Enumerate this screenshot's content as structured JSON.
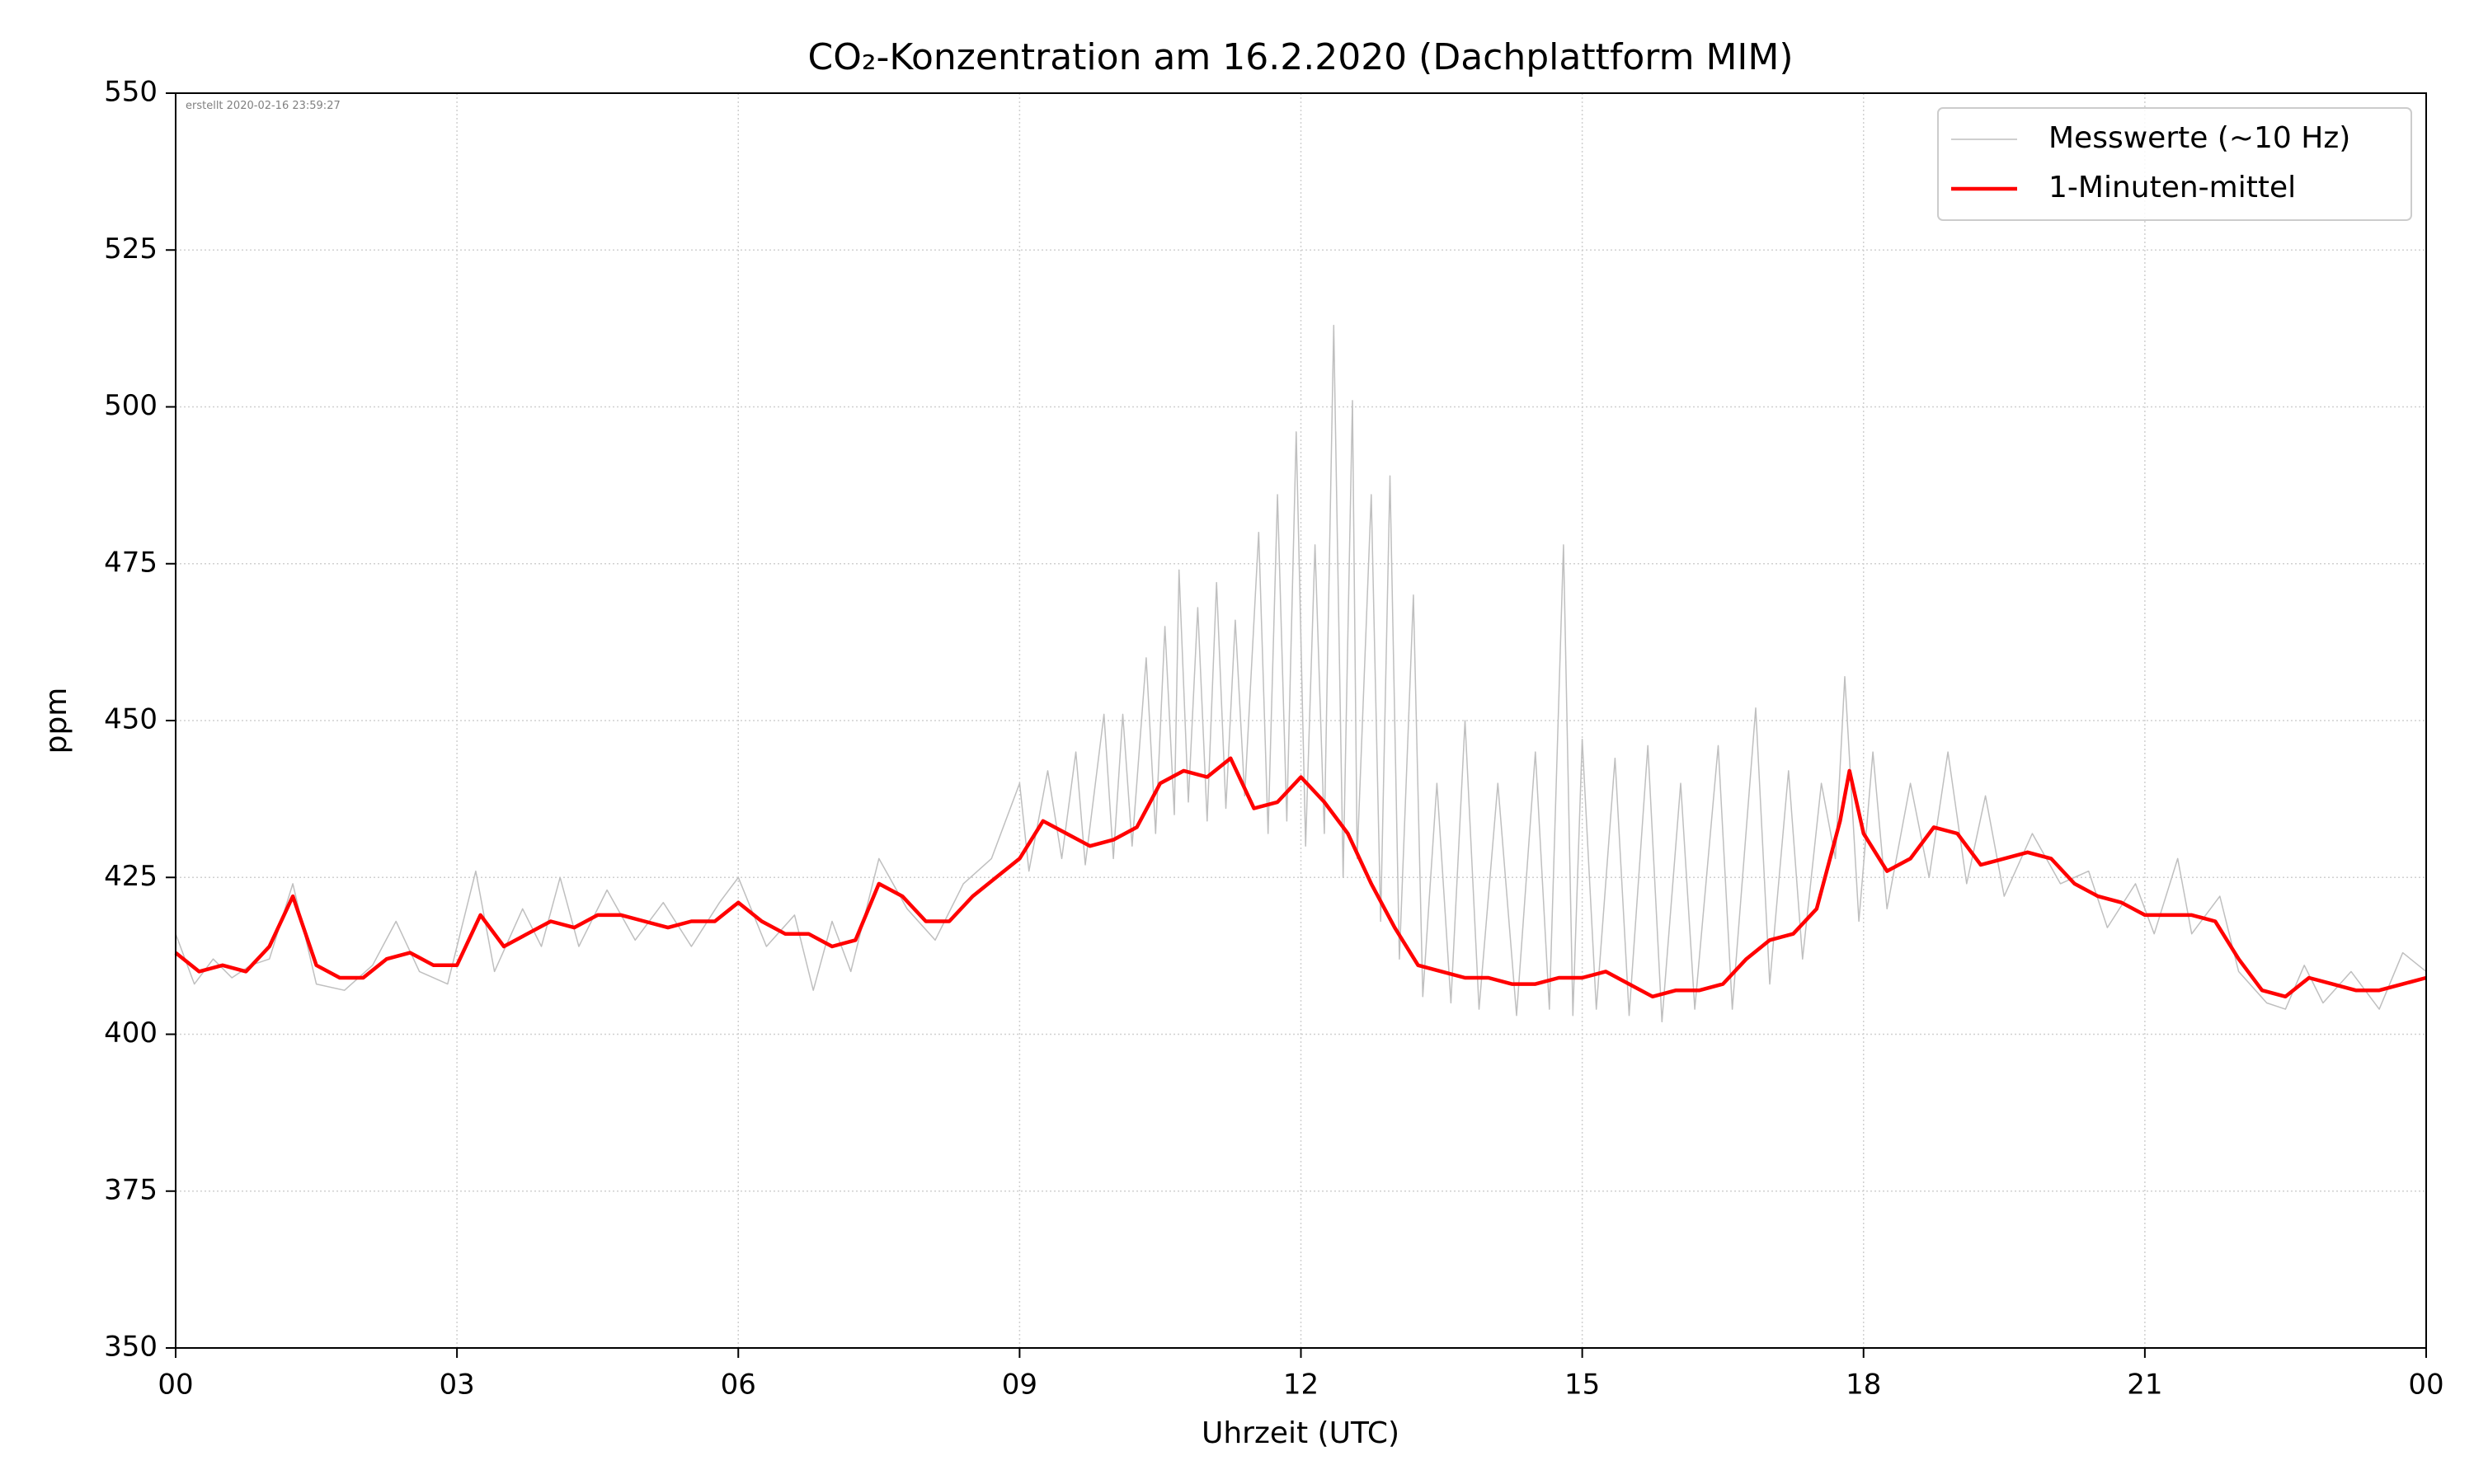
{
  "chart_data": {
    "type": "line",
    "title": "CO₂-Konzentration am 16.2.2020 (Dachplattform MIM)",
    "xlabel": "Uhrzeit (UTC)",
    "ylabel": "ppm",
    "annotation": "erstellt 2020-02-16 23:59:27",
    "xlim": [
      0,
      24
    ],
    "ylim": [
      350,
      550
    ],
    "xticks": [
      {
        "value": 0,
        "label": "00"
      },
      {
        "value": 3,
        "label": "03"
      },
      {
        "value": 6,
        "label": "06"
      },
      {
        "value": 9,
        "label": "09"
      },
      12,
      15,
      18,
      21,
      {
        "value": 24,
        "label": "00"
      }
    ],
    "yticks": [
      350,
      375,
      400,
      425,
      450,
      475,
      500,
      525,
      550
    ],
    "grid": true,
    "legend": "upper right",
    "series": [
      {
        "name": "Messwerte (~10 Hz)",
        "color": "#bfbfbf",
        "x": [
          0,
          0.2,
          0.4,
          0.6,
          0.8,
          1.0,
          1.25,
          1.5,
          1.8,
          2.1,
          2.35,
          2.6,
          2.9,
          3.1,
          3.2,
          3.4,
          3.7,
          3.9,
          4.1,
          4.3,
          4.6,
          4.9,
          5.2,
          5.5,
          5.8,
          6.0,
          6.3,
          6.6,
          6.8,
          7.0,
          7.2,
          7.5,
          7.8,
          8.1,
          8.4,
          8.7,
          9.0,
          9.1,
          9.3,
          9.45,
          9.6,
          9.7,
          9.9,
          10.0,
          10.1,
          10.2,
          10.35,
          10.45,
          10.55,
          10.65,
          10.7,
          10.8,
          10.9,
          11.0,
          11.1,
          11.2,
          11.3,
          11.4,
          11.55,
          11.65,
          11.75,
          11.85,
          11.95,
          12.05,
          12.15,
          12.25,
          12.35,
          12.45,
          12.55,
          12.6,
          12.75,
          12.85,
          12.95,
          13.05,
          13.2,
          13.3,
          13.45,
          13.6,
          13.75,
          13.9,
          14.1,
          14.3,
          14.5,
          14.65,
          14.8,
          14.9,
          15.0,
          15.15,
          15.35,
          15.5,
          15.7,
          15.85,
          16.05,
          16.2,
          16.45,
          16.6,
          16.85,
          17.0,
          17.2,
          17.35,
          17.55,
          17.7,
          17.8,
          17.95,
          18.1,
          18.25,
          18.5,
          18.7,
          18.9,
          19.1,
          19.3,
          19.5,
          19.8,
          20.1,
          20.4,
          20.6,
          20.9,
          21.1,
          21.35,
          21.5,
          21.8,
          22.0,
          22.3,
          22.5,
          22.7,
          22.9,
          23.2,
          23.5,
          23.75,
          24.0
        ],
        "values": [
          416,
          408,
          412,
          409,
          411,
          412,
          424,
          408,
          407,
          411,
          418,
          410,
          408,
          420,
          426,
          410,
          420,
          414,
          425,
          414,
          423,
          415,
          421,
          414,
          421,
          425,
          414,
          419,
          407,
          418,
          410,
          428,
          420,
          415,
          424,
          428,
          440,
          426,
          442,
          428,
          445,
          427,
          451,
          428,
          451,
          430,
          460,
          432,
          465,
          435,
          474,
          437,
          468,
          434,
          472,
          436,
          466,
          438,
          480,
          432,
          486,
          434,
          496,
          430,
          478,
          432,
          513,
          425,
          501,
          428,
          486,
          418,
          489,
          412,
          470,
          406,
          440,
          405,
          450,
          404,
          440,
          403,
          445,
          404,
          478,
          403,
          447,
          404,
          444,
          403,
          446,
          402,
          440,
          404,
          446,
          404,
          452,
          408,
          442,
          412,
          440,
          428,
          457,
          418,
          445,
          420,
          440,
          425,
          445,
          424,
          438,
          422,
          432,
          424,
          426,
          417,
          424,
          416,
          428,
          416,
          422,
          410,
          405,
          404,
          411,
          405,
          410,
          404,
          413,
          410
        ]
      },
      {
        "name": "1-Minuten-mittel",
        "color": "#ff0000",
        "x": [
          0,
          0.25,
          0.5,
          0.75,
          1.0,
          1.25,
          1.5,
          1.75,
          2.0,
          2.25,
          2.5,
          2.75,
          3.0,
          3.25,
          3.5,
          3.75,
          4.0,
          4.25,
          4.5,
          4.75,
          5.0,
          5.25,
          5.5,
          5.75,
          6.0,
          6.25,
          6.5,
          6.75,
          7.0,
          7.25,
          7.5,
          7.75,
          8.0,
          8.25,
          8.5,
          8.75,
          9.0,
          9.25,
          9.5,
          9.75,
          10.0,
          10.25,
          10.5,
          10.75,
          11.0,
          11.25,
          11.5,
          11.75,
          12.0,
          12.25,
          12.5,
          12.75,
          13.0,
          13.25,
          13.5,
          13.75,
          14.0,
          14.25,
          14.5,
          14.75,
          15.0,
          15.25,
          15.5,
          15.75,
          16.0,
          16.25,
          16.5,
          16.75,
          17.0,
          17.25,
          17.5,
          17.75,
          17.85,
          18.0,
          18.25,
          18.5,
          18.75,
          19.0,
          19.25,
          19.5,
          19.75,
          20.0,
          20.25,
          20.5,
          20.75,
          21.0,
          21.25,
          21.5,
          21.75,
          22.0,
          22.25,
          22.5,
          22.75,
          23.0,
          23.25,
          23.5,
          23.75,
          24.0
        ],
        "values": [
          413,
          410,
          411,
          410,
          414,
          422,
          411,
          409,
          409,
          412,
          413,
          411,
          411,
          419,
          414,
          416,
          418,
          417,
          419,
          419,
          418,
          417,
          418,
          418,
          421,
          418,
          416,
          416,
          414,
          415,
          424,
          422,
          418,
          418,
          422,
          425,
          428,
          434,
          432,
          430,
          431,
          433,
          440,
          442,
          441,
          444,
          436,
          437,
          441,
          437,
          432,
          424,
          417,
          411,
          410,
          409,
          409,
          408,
          408,
          409,
          409,
          410,
          408,
          406,
          407,
          407,
          408,
          412,
          415,
          416,
          420,
          434,
          442,
          432,
          426,
          428,
          433,
          432,
          427,
          428,
          429,
          428,
          424,
          422,
          421,
          419,
          419,
          419,
          418,
          412,
          407,
          406,
          409,
          408,
          407,
          407,
          408,
          409
        ]
      }
    ]
  }
}
